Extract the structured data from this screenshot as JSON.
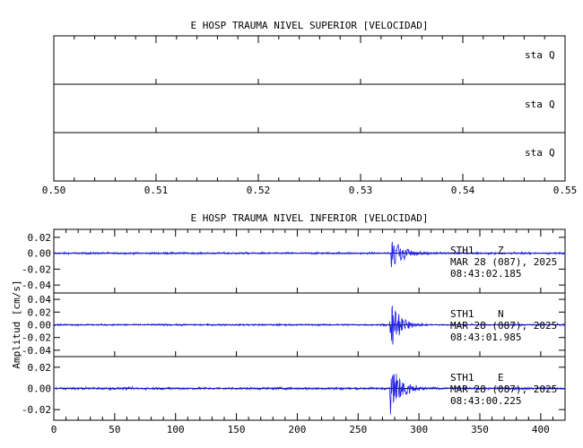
{
  "chart_data": [
    {
      "type": "line",
      "title": "E HOSP TRAUMA NIVEL SUPERIOR [VELOCIDAD]",
      "xlim": [
        0.5,
        0.55
      ],
      "x_ticks": [
        "0.50",
        "0.51",
        "0.52",
        "0.53",
        "0.54",
        "0.55"
      ],
      "ylabel": "",
      "panels": [
        {
          "station": "sta",
          "component": "Q"
        },
        {
          "station": "sta",
          "component": "Q"
        },
        {
          "station": "sta",
          "component": "Q"
        }
      ]
    },
    {
      "type": "line",
      "title": "E HOSP TRAUMA NIVEL INFERIOR [VELOCIDAD]",
      "xlim": [
        0,
        420
      ],
      "x_ticks": [
        "0",
        "50",
        "100",
        "150",
        "200",
        "250",
        "300",
        "350",
        "400"
      ],
      "ylabel": "Amplitud [cm/s]",
      "panels": [
        {
          "station": "STH1",
          "component": "Z",
          "date": "MAR 28 (087), 2025",
          "time": "08:43:02.185",
          "ylim": [
            -0.05,
            0.03
          ],
          "y_ticks": [
            "0.02",
            "0.00",
            "-0.02",
            "-0.04"
          ],
          "noise": 0.0008,
          "event_start": 277,
          "peak": 0.026,
          "decay": 9
        },
        {
          "station": "STH1",
          "component": "N",
          "date": "MAR 28 (087), 2025",
          "time": "08:43:01.985",
          "ylim": [
            -0.05,
            0.05
          ],
          "y_ticks": [
            "0.04",
            "0.02",
            "0.00",
            "-0.02",
            "-0.04"
          ],
          "noise": 0.0009,
          "event_start": 276,
          "peak": 0.044,
          "decay": 8
        },
        {
          "station": "STH1",
          "component": "E",
          "date": "MAR 28 (087), 2025",
          "time": "08:43:00.225",
          "ylim": [
            -0.03,
            0.03
          ],
          "y_ticks": [
            "0.02",
            "0.00",
            "-0.02"
          ],
          "noise": 0.0008,
          "event_start": 276,
          "peak": 0.028,
          "decay": 9
        }
      ]
    }
  ]
}
